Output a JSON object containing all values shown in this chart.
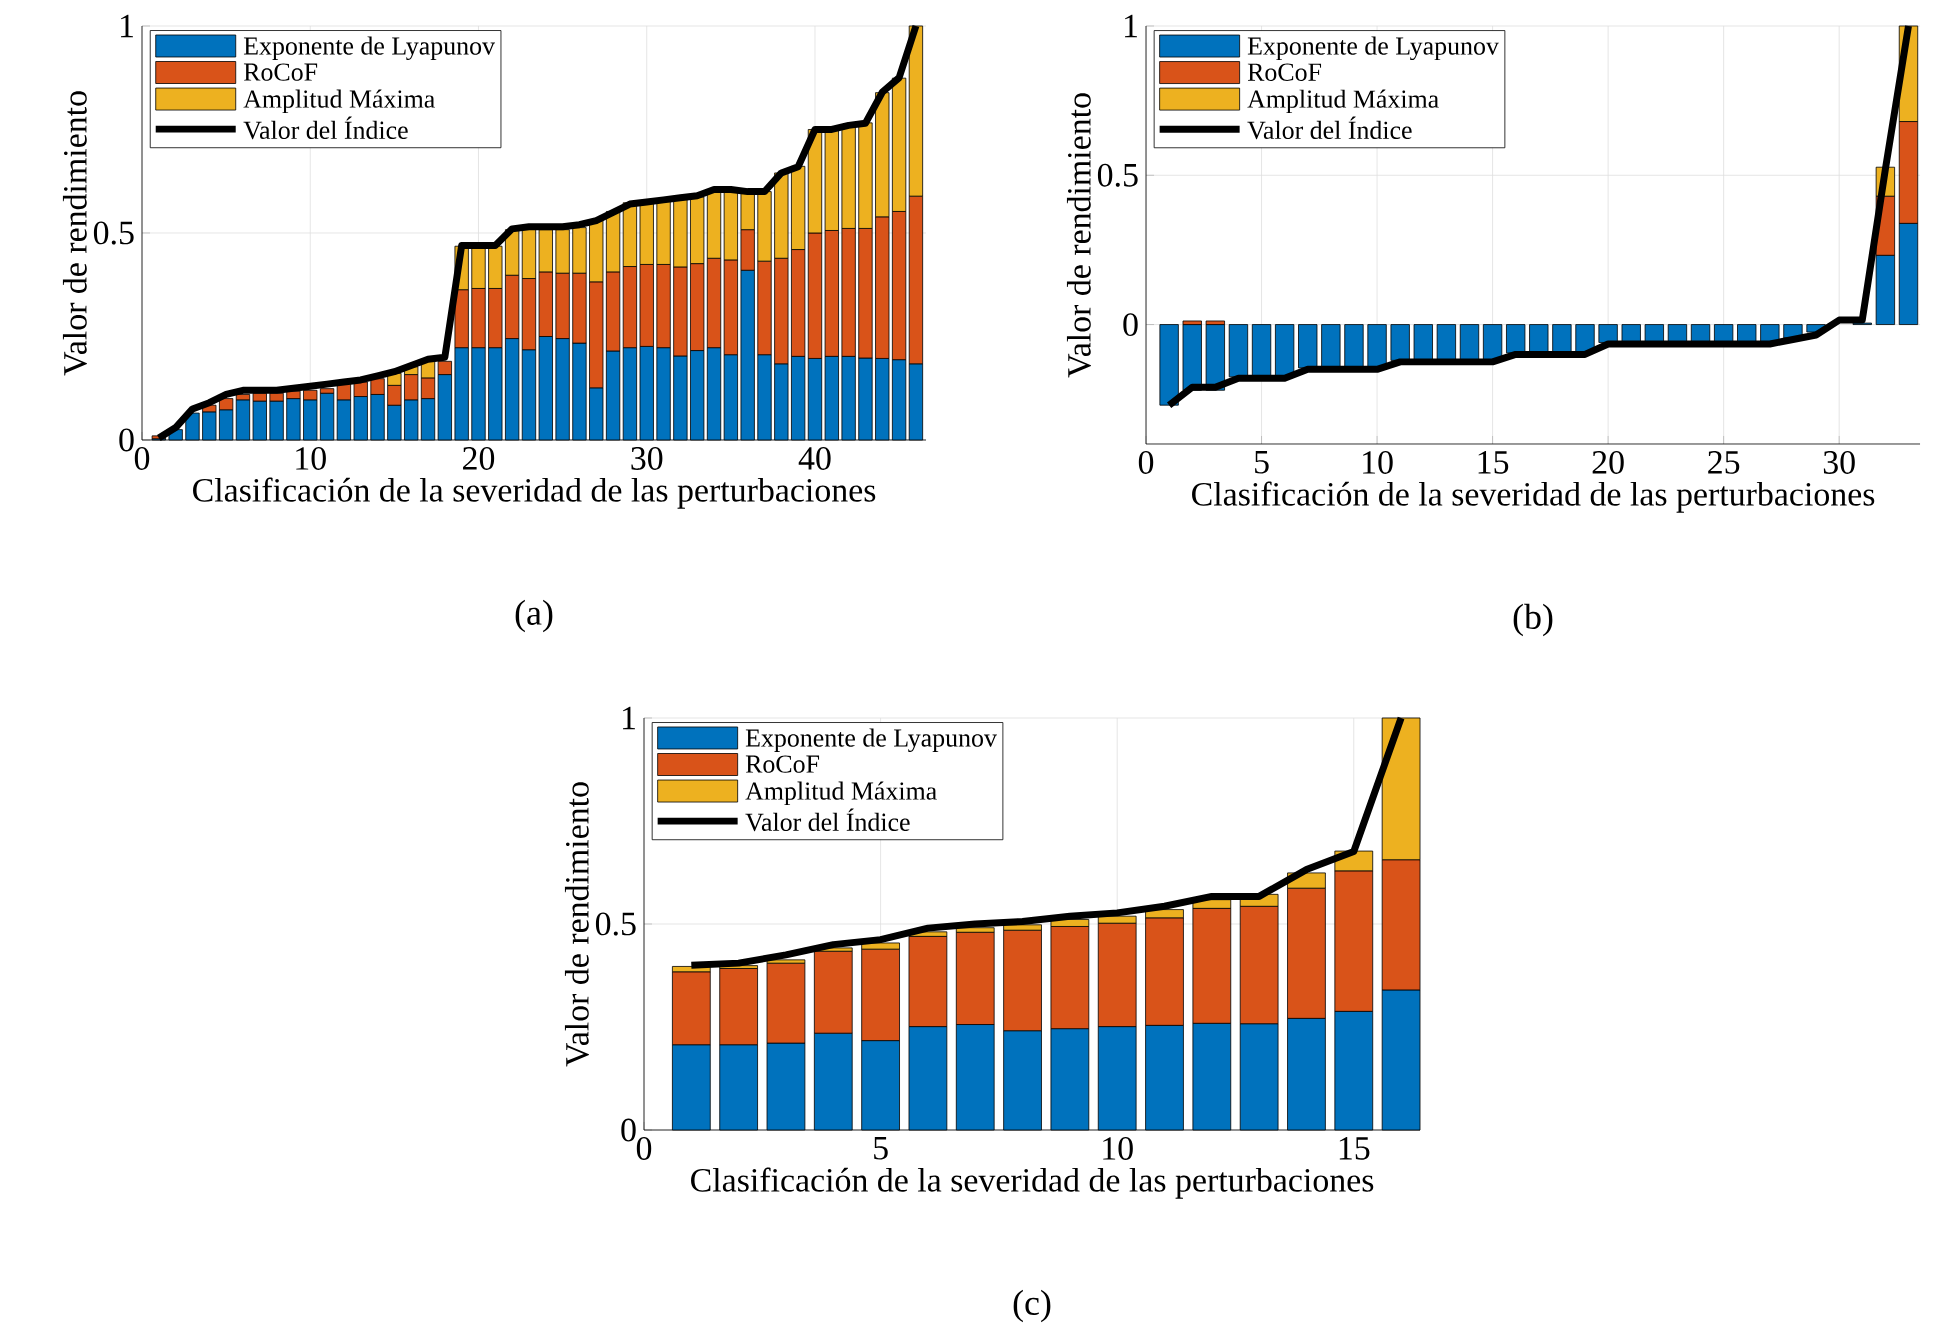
{
  "chart_data": [
    {
      "type": "bar",
      "stacked": true,
      "xlabel": "Clasificación de la severidad de las perturbaciones",
      "ylabel": "Valor de rendimiento",
      "annotations": [
        "(a)"
      ],
      "legend": "top left",
      "grid": true,
      "x": [
        1,
        2,
        3,
        4,
        5,
        6,
        7,
        8,
        9,
        10,
        11,
        12,
        13,
        14,
        15,
        16,
        17,
        18,
        19,
        20,
        21,
        22,
        23,
        24,
        25,
        26,
        27,
        28,
        29,
        30,
        31,
        32,
        33,
        34,
        35,
        36,
        37,
        38,
        39,
        40,
        41,
        42,
        43,
        44,
        45,
        46
      ],
      "xlim": [
        0,
        46.6
      ],
      "xticks": [
        0,
        10,
        20,
        30,
        40
      ],
      "ylim": [
        0,
        1
      ],
      "yticks": [
        0,
        0.5,
        1
      ],
      "series": [
        {
          "name": "Exponente de Lyapunov",
          "color": "#0072bd",
          "values": [
            0.003,
            0.025,
            0.065,
            0.068,
            0.073,
            0.097,
            0.094,
            0.094,
            0.1,
            0.097,
            0.113,
            0.097,
            0.105,
            0.11,
            0.084,
            0.097,
            0.1,
            0.158,
            0.223,
            0.223,
            0.223,
            0.245,
            0.218,
            0.25,
            0.245,
            0.234,
            0.126,
            0.215,
            0.223,
            0.226,
            0.223,
            0.203,
            0.216,
            0.223,
            0.206,
            0.41,
            0.206,
            0.184,
            0.202,
            0.197,
            0.202,
            0.202,
            0.198,
            0.197,
            0.194,
            0.184
          ]
        },
        {
          "name": "RoCoF",
          "color": "#d95319",
          "values": [
            0.007,
            null,
            null,
            0.016,
            0.027,
            0.013,
            0.019,
            0.019,
            0.018,
            0.023,
            0.011,
            0.04,
            0.035,
            0.038,
            0.048,
            0.061,
            0.05,
            0.032,
            0.14,
            0.143,
            0.143,
            0.153,
            0.172,
            0.156,
            0.158,
            0.169,
            0.256,
            0.191,
            0.196,
            0.198,
            0.201,
            0.215,
            0.21,
            0.216,
            0.229,
            0.098,
            0.226,
            0.255,
            0.258,
            0.303,
            0.304,
            0.309,
            0.313,
            0.342,
            0.358,
            0.405
          ]
        },
        {
          "name": "Amplitud Máxima",
          "color": "#edb120",
          "values": [
            0,
            0,
            0,
            0,
            0,
            0,
            0,
            0,
            0,
            0,
            0,
            0,
            0,
            0,
            0.029,
            0.019,
            0.044,
            null,
            0.105,
            0.102,
            0.102,
            0.11,
            0.123,
            0.102,
            0.105,
            0.11,
            0.15,
            0.146,
            0.154,
            0.152,
            0.157,
            0.166,
            0.161,
            0.164,
            0.168,
            0.089,
            0.168,
            0.206,
            0.201,
            0.25,
            0.244,
            0.247,
            0.255,
            0.3,
            0.322,
            0.411
          ]
        },
        {
          "name": "Valor del Índice",
          "type": "line",
          "color": "#000000",
          "values": [
            0.005,
            0.03,
            0.075,
            0.09,
            0.11,
            0.12,
            0.12,
            0.12,
            0.125,
            0.13,
            0.135,
            0.14,
            0.145,
            0.155,
            0.165,
            0.18,
            0.195,
            0.2,
            0.47,
            0.47,
            0.47,
            0.51,
            0.515,
            0.515,
            0.515,
            0.52,
            0.53,
            0.55,
            0.57,
            0.575,
            0.58,
            0.585,
            0.59,
            0.605,
            0.605,
            0.6,
            0.6,
            0.645,
            0.66,
            0.75,
            0.75,
            0.76,
            0.765,
            0.84,
            0.875,
            1.0
          ]
        }
      ]
    },
    {
      "type": "bar",
      "stacked": true,
      "xlabel": "Clasificación de la severidad de las perturbaciones",
      "ylabel": "Valor de rendimiento",
      "annotations": [
        "(b)"
      ],
      "legend": "top left",
      "grid": true,
      "x": [
        1,
        2,
        3,
        4,
        5,
        6,
        7,
        8,
        9,
        10,
        11,
        12,
        13,
        14,
        15,
        16,
        17,
        18,
        19,
        20,
        21,
        22,
        23,
        24,
        25,
        26,
        27,
        28,
        29,
        30,
        31,
        32,
        33
      ],
      "xlim": [
        0,
        33.5
      ],
      "xticks": [
        0,
        5,
        10,
        15,
        20,
        25,
        30
      ],
      "ylim": [
        -0.4,
        1
      ],
      "yticks": [
        0,
        0.5,
        1
      ],
      "series": [
        {
          "name": "Exponente de Lyapunov",
          "color": "#0072bd",
          "values": [
            -0.27,
            -0.22,
            -0.22,
            -0.175,
            -0.175,
            -0.175,
            -0.145,
            -0.145,
            -0.145,
            -0.145,
            -0.12,
            -0.12,
            -0.12,
            -0.12,
            -0.12,
            -0.095,
            -0.095,
            -0.095,
            -0.095,
            -0.06,
            -0.06,
            -0.06,
            -0.06,
            -0.06,
            -0.06,
            -0.06,
            -0.06,
            -0.045,
            -0.025,
            null,
            0.005,
            0.232,
            0.339
          ]
        },
        {
          "name": "RoCoF",
          "color": "#d95319",
          "values": [
            0,
            0.012,
            0.012,
            0,
            0,
            0,
            0,
            0,
            0,
            0,
            0,
            0,
            0,
            0,
            0,
            0,
            0,
            0,
            0,
            0,
            0,
            0,
            0,
            0,
            0,
            0,
            0,
            0,
            0,
            0,
            0,
            0.198,
            0.341
          ]
        },
        {
          "name": "Amplitud Máxima",
          "color": "#edb120",
          "values": [
            0,
            0,
            0,
            0,
            0,
            0,
            0,
            0,
            0,
            0,
            0,
            0,
            0,
            0,
            0,
            0,
            0,
            0,
            0,
            0,
            0,
            0,
            0,
            0,
            0,
            0,
            0,
            0,
            0,
            0,
            0,
            0.097,
            0.32
          ]
        },
        {
          "name": "Valor del Índice",
          "type": "line",
          "color": "#000000",
          "values": [
            -0.27,
            -0.21,
            -0.21,
            -0.18,
            -0.18,
            -0.18,
            -0.15,
            -0.15,
            -0.15,
            -0.15,
            -0.125,
            -0.125,
            -0.125,
            -0.125,
            -0.125,
            -0.1,
            -0.1,
            -0.1,
            -0.1,
            -0.065,
            -0.065,
            -0.065,
            -0.065,
            -0.065,
            -0.065,
            -0.065,
            -0.065,
            -0.05,
            -0.035,
            0.015,
            0.015,
            0.52,
            1.0
          ]
        }
      ]
    },
    {
      "type": "bar",
      "stacked": true,
      "xlabel": "Clasificación de la severidad de las perturbaciones",
      "ylabel": "Valor de rendimiento",
      "annotations": [
        "(c)"
      ],
      "legend": "top left",
      "grid": true,
      "x": [
        1,
        2,
        3,
        4,
        5,
        6,
        7,
        8,
        9,
        10,
        11,
        12,
        13,
        14,
        15,
        16
      ],
      "xlim": [
        0,
        16.4
      ],
      "xticks": [
        0,
        5,
        10,
        15
      ],
      "ylim": [
        0,
        1
      ],
      "yticks": [
        0,
        0.5,
        1
      ],
      "series": [
        {
          "name": "Exponente de Lyapunov",
          "color": "#0072bd",
          "values": [
            0.207,
            0.207,
            0.211,
            0.235,
            0.217,
            0.251,
            0.256,
            0.241,
            0.246,
            0.251,
            0.254,
            0.259,
            0.258,
            0.271,
            0.288,
            0.34
          ]
        },
        {
          "name": "RoCoF",
          "color": "#d95319",
          "values": [
            0.177,
            0.185,
            0.194,
            0.199,
            0.222,
            0.219,
            0.224,
            0.244,
            0.248,
            0.251,
            0.261,
            0.279,
            0.285,
            0.316,
            0.341,
            0.316
          ]
        },
        {
          "name": "Amplitud Máxima",
          "color": "#edb120",
          "values": [
            0.013,
            0.007,
            0.008,
            0.008,
            0.015,
            0.011,
            0.011,
            0.013,
            0.017,
            0.017,
            0.02,
            0.021,
            0.029,
            0.037,
            0.048,
            0.344
          ]
        },
        {
          "name": "Valor del Índice",
          "type": "line",
          "color": "#000000",
          "values": [
            0.4,
            0.405,
            0.425,
            0.45,
            0.462,
            0.49,
            0.5,
            0.506,
            0.519,
            0.527,
            0.543,
            0.567,
            0.567,
            0.632,
            0.676,
            1.0
          ]
        }
      ]
    }
  ]
}
